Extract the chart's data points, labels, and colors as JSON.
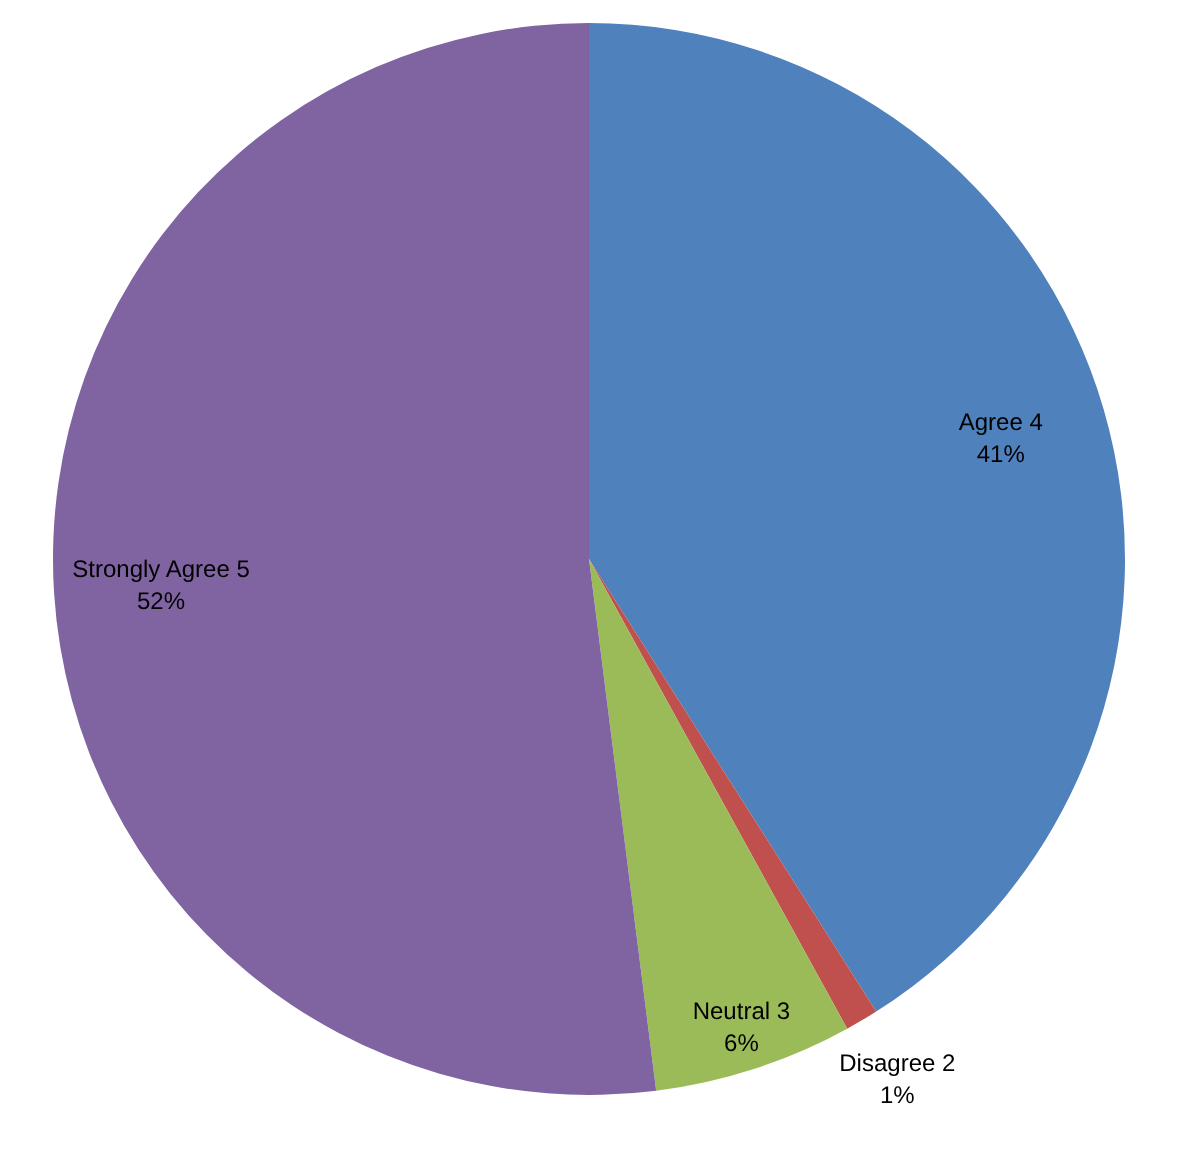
{
  "chart_data": {
    "type": "pie",
    "categories": [
      "Agree 4",
      "Disagree 2",
      "Neutral 3",
      "Strongly Agree 5"
    ],
    "values": [
      41,
      1,
      6,
      52
    ],
    "colors": [
      "#4f81bd",
      "#c0504d",
      "#9bbb59",
      "#8064a2"
    ],
    "value_labels": [
      "41%",
      "1%",
      "6%",
      "52%"
    ],
    "legend": false
  }
}
